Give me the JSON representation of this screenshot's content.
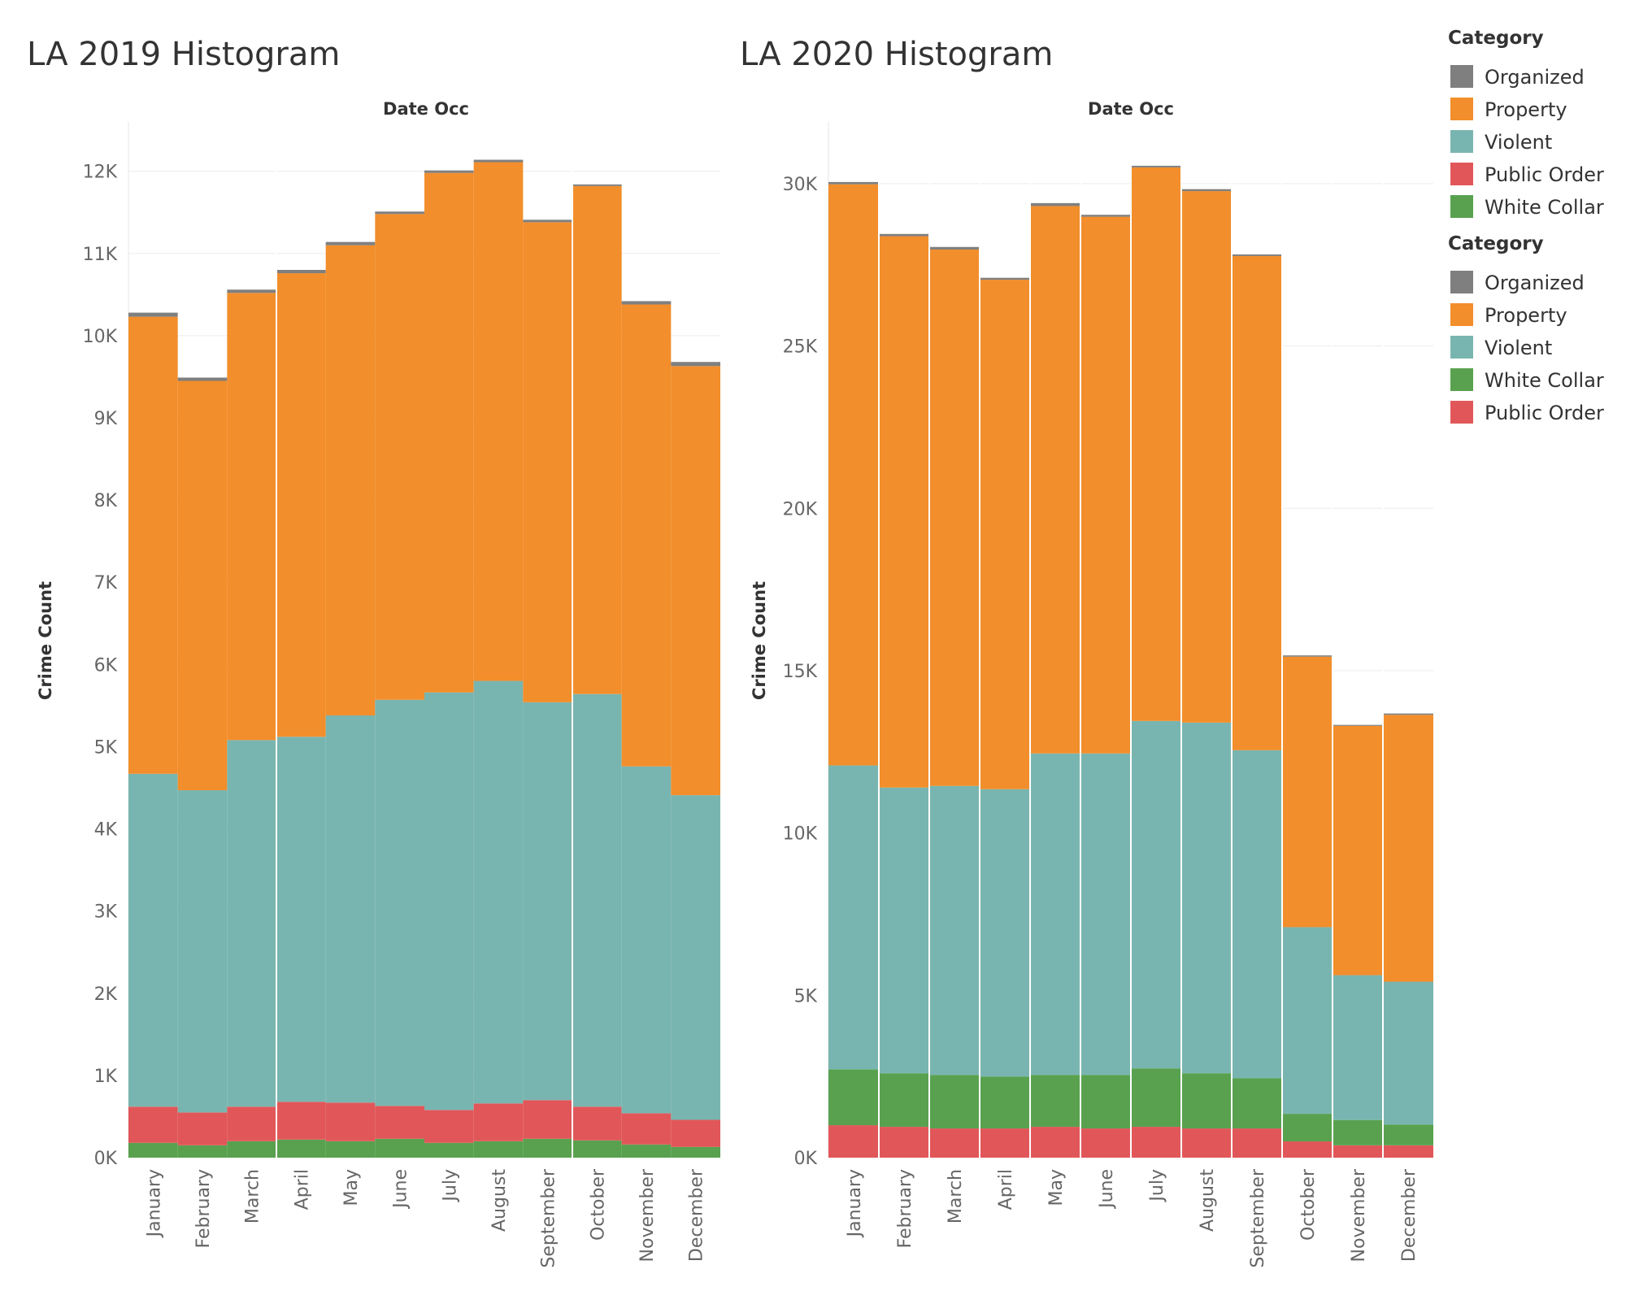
{
  "colors": {
    "Organized": "#7f7f7f",
    "Property": "#f28e2b",
    "Violent": "#79b5b0",
    "Public Order": "#e15759",
    "White Collar": "#59a14f"
  },
  "legends": [
    {
      "title": "Category",
      "items": [
        "Organized",
        "Property",
        "Violent",
        "Public Order",
        "White Collar"
      ]
    },
    {
      "title": "Category",
      "items": [
        "Organized",
        "Property",
        "Violent",
        "White Collar",
        "Public Order"
      ]
    }
  ],
  "chart_data": [
    {
      "type": "bar",
      "stacked": true,
      "title": "LA 2019 Histogram",
      "xlabel": "Date Occ",
      "ylabel": "Crime Count",
      "ylim": [
        0,
        12600
      ],
      "yticks": [
        0,
        1000,
        2000,
        3000,
        4000,
        5000,
        6000,
        7000,
        8000,
        9000,
        10000,
        11000,
        12000
      ],
      "ytick_labels": [
        "0K",
        "1K",
        "2K",
        "3K",
        "4K",
        "5K",
        "6K",
        "7K",
        "8K",
        "9K",
        "10K",
        "11K",
        "12K"
      ],
      "categories": [
        "January",
        "February",
        "March",
        "April",
        "May",
        "June",
        "July",
        "August",
        "September",
        "October",
        "November",
        "December"
      ],
      "stack_order": [
        "White Collar",
        "Public Order",
        "Violent",
        "Property",
        "Organized"
      ],
      "series": [
        {
          "name": "White Collar",
          "values": [
            180,
            150,
            200,
            220,
            200,
            230,
            180,
            200,
            230,
            210,
            160,
            130
          ]
        },
        {
          "name": "Public Order",
          "values": [
            440,
            400,
            420,
            460,
            470,
            400,
            400,
            460,
            470,
            410,
            380,
            330
          ]
        },
        {
          "name": "Violent",
          "values": [
            4050,
            3920,
            4460,
            4440,
            4710,
            4940,
            5080,
            5140,
            4840,
            5020,
            4220,
            3950
          ]
        },
        {
          "name": "Property",
          "values": [
            5560,
            4980,
            5440,
            5640,
            5720,
            5910,
            6320,
            6310,
            5840,
            6180,
            5620,
            5220
          ]
        },
        {
          "name": "Organized",
          "values": [
            50,
            40,
            40,
            40,
            40,
            30,
            30,
            30,
            30,
            20,
            40,
            50
          ]
        }
      ]
    },
    {
      "type": "bar",
      "stacked": true,
      "title": "LA 2020 Histogram",
      "xlabel": "Date Occ",
      "ylabel": "Crime Count",
      "ylim": [
        0,
        31900
      ],
      "yticks": [
        0,
        5000,
        10000,
        15000,
        20000,
        25000,
        30000
      ],
      "ytick_labels": [
        "0K",
        "5K",
        "10K",
        "15K",
        "20K",
        "25K",
        "30K"
      ],
      "categories": [
        "January",
        "February",
        "March",
        "April",
        "May",
        "June",
        "July",
        "August",
        "September",
        "October",
        "November",
        "December"
      ],
      "stack_order": [
        "Public Order",
        "White Collar",
        "Violent",
        "Property",
        "Organized"
      ],
      "series": [
        {
          "name": "Public Order",
          "values": [
            1000,
            950,
            900,
            900,
            950,
            900,
            950,
            900,
            900,
            500,
            380,
            380
          ]
        },
        {
          "name": "White Collar",
          "values": [
            1720,
            1650,
            1650,
            1600,
            1600,
            1650,
            1800,
            1700,
            1550,
            850,
            780,
            640
          ]
        },
        {
          "name": "Violent",
          "values": [
            9360,
            8800,
            8900,
            8850,
            9900,
            9900,
            10700,
            10800,
            10100,
            5750,
            4460,
            4400
          ]
        },
        {
          "name": "Property",
          "values": [
            17900,
            16980,
            16520,
            15690,
            16860,
            16530,
            17050,
            16370,
            15220,
            8330,
            7680,
            8220
          ]
        },
        {
          "name": "Organized",
          "values": [
            70,
            70,
            80,
            60,
            90,
            60,
            50,
            60,
            50,
            40,
            30,
            40
          ]
        }
      ]
    }
  ]
}
